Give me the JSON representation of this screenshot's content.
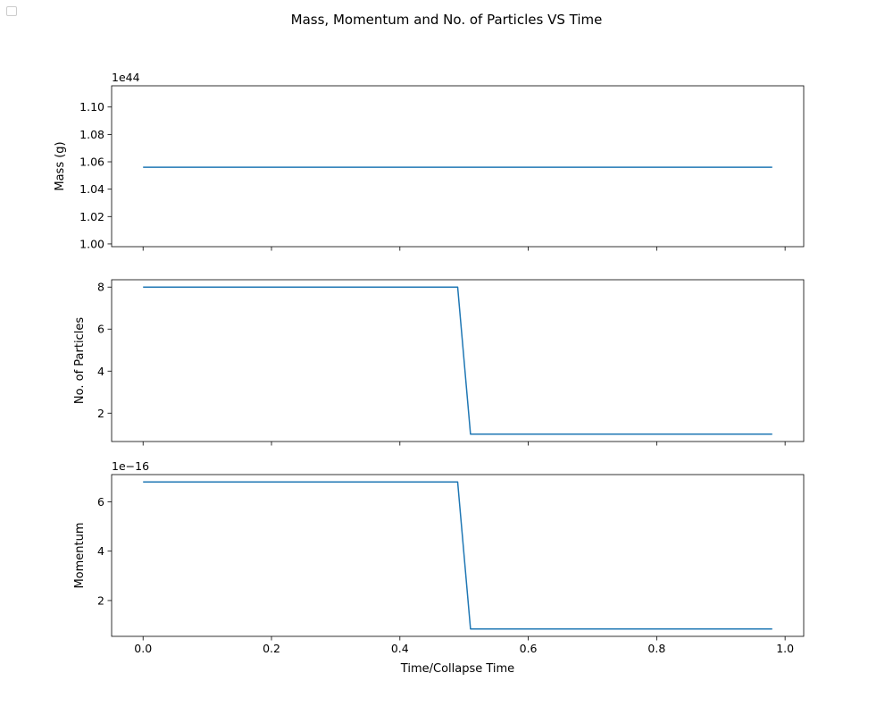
{
  "figure": {
    "title": "Mass, Momentum and No. of Particles VS Time",
    "xlabel": "Time/Collapse Time",
    "line_color": "#1f77b4",
    "empty_legend": true
  },
  "chart_data": [
    {
      "type": "line",
      "ylabel": "Mass (g)",
      "offset_text": "1e44",
      "xlim": [
        -0.049,
        1.029
      ],
      "ylim": [
        0.998,
        1.1155
      ],
      "x_ticks": [
        0.0,
        0.2,
        0.4,
        0.6,
        0.8,
        1.0
      ],
      "show_x_tick_labels": false,
      "y_ticks": [
        1.0,
        1.02,
        1.04,
        1.06,
        1.08,
        1.1
      ],
      "y_tick_labels": [
        "1.00",
        "1.02",
        "1.04",
        "1.06",
        "1.08",
        "1.10"
      ],
      "series": [
        {
          "x": [
            0.0,
            0.49,
            0.51,
            0.98
          ],
          "y": [
            1.056,
            1.056,
            1.056,
            1.056
          ]
        }
      ]
    },
    {
      "type": "line",
      "ylabel": "No. of Particles",
      "offset_text": "",
      "xlim": [
        -0.049,
        1.029
      ],
      "ylim": [
        0.65,
        8.35
      ],
      "x_ticks": [
        0.0,
        0.2,
        0.4,
        0.6,
        0.8,
        1.0
      ],
      "show_x_tick_labels": false,
      "y_ticks": [
        2,
        4,
        6,
        8
      ],
      "y_tick_labels": [
        "2",
        "4",
        "6",
        "8"
      ],
      "series": [
        {
          "x": [
            0.0,
            0.49,
            0.51,
            0.98
          ],
          "y": [
            8,
            8,
            1,
            1
          ]
        }
      ]
    },
    {
      "type": "line",
      "ylabel": "Momentum",
      "offset_text": "1e−16",
      "xlim": [
        -0.049,
        1.029
      ],
      "ylim": [
        0.55,
        7.1
      ],
      "x_ticks": [
        0.0,
        0.2,
        0.4,
        0.6,
        0.8,
        1.0
      ],
      "show_x_tick_labels": true,
      "x_tick_labels": [
        "0.0",
        "0.2",
        "0.4",
        "0.6",
        "0.8",
        "1.0"
      ],
      "y_ticks": [
        2,
        4,
        6
      ],
      "y_tick_labels": [
        "2",
        "4",
        "6"
      ],
      "series": [
        {
          "x": [
            0.0,
            0.49,
            0.51,
            0.98
          ],
          "y": [
            6.8,
            6.8,
            0.85,
            0.85
          ]
        }
      ]
    }
  ]
}
